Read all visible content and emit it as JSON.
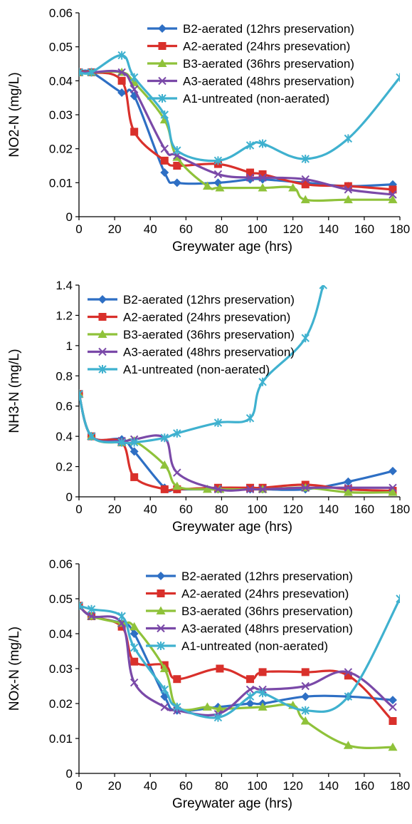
{
  "chart_data": [
    {
      "type": "line",
      "title": "",
      "xlabel": "Greywater age (hrs)",
      "ylabel": "NO2-N (mg/L)",
      "xlim": [
        0,
        180
      ],
      "ylim": [
        0,
        0.06
      ],
      "xticks": [
        "0",
        "20",
        "40",
        "60",
        "80",
        "100",
        "120",
        "140",
        "160",
        "180"
      ],
      "yticks": [
        "0",
        "0.01",
        "0.02",
        "0.03",
        "0.04",
        "0.05",
        "0.06"
      ],
      "grid": false,
      "legend_position": "top-right",
      "series": [
        {
          "name": "B2-aerated (12hrs preservation)",
          "color": "#2e6fc4",
          "marker": "diamond",
          "x": [
            0,
            7,
            24,
            31,
            48,
            55,
            78,
            96,
            103,
            127,
            151,
            176
          ],
          "y": [
            0.0425,
            0.0425,
            0.0365,
            0.0355,
            0.013,
            0.01,
            0.01,
            0.011,
            0.011,
            0.01,
            0.009,
            0.0095
          ]
        },
        {
          "name": "A2-aerated (24hrs presevation)",
          "color": "#d9302b",
          "marker": "square",
          "x": [
            0,
            7,
            24,
            31,
            48,
            55,
            78,
            96,
            103,
            127,
            151,
            176
          ],
          "y": [
            0.0425,
            0.0425,
            0.04,
            0.025,
            0.0165,
            0.015,
            0.0155,
            0.013,
            0.0125,
            0.0095,
            0.009,
            0.008
          ]
        },
        {
          "name": "B3-aerated (36hrs preservation)",
          "color": "#8fc23a",
          "marker": "triangle",
          "x": [
            0,
            7,
            24,
            31,
            48,
            55,
            72,
            79,
            103,
            120,
            127,
            151,
            176
          ],
          "y": [
            0.0425,
            0.0425,
            0.0425,
            0.0395,
            0.0285,
            0.0175,
            0.009,
            0.0085,
            0.0085,
            0.0085,
            0.005,
            0.005,
            0.005
          ]
        },
        {
          "name": "A3-aerated (48hrs preservation)",
          "color": "#7a49a8",
          "marker": "x",
          "x": [
            0,
            7,
            24,
            31,
            48,
            55,
            78,
            96,
            103,
            127,
            151,
            176
          ],
          "y": [
            0.0425,
            0.0425,
            0.0425,
            0.0375,
            0.02,
            0.018,
            0.0125,
            0.0115,
            0.0115,
            0.011,
            0.008,
            0.0065
          ]
        },
        {
          "name": "A1-untreated (non-aerated)",
          "color": "#3fb1cf",
          "marker": "star",
          "x": [
            0,
            7,
            24,
            31,
            48,
            55,
            78,
            96,
            103,
            127,
            151,
            180
          ],
          "y": [
            0.0425,
            0.0425,
            0.0475,
            0.041,
            0.03,
            0.0195,
            0.0165,
            0.021,
            0.0215,
            0.017,
            0.023,
            0.041
          ]
        }
      ]
    },
    {
      "type": "line",
      "title": "",
      "xlabel": "Greywater age (hrs)",
      "ylabel": "NH3-N (mg/L)",
      "xlim": [
        0,
        180
      ],
      "ylim": [
        0,
        1.4
      ],
      "xticks": [
        "0",
        "20",
        "40",
        "60",
        "80",
        "100",
        "120",
        "140",
        "160",
        "180"
      ],
      "yticks": [
        "0",
        "0.2",
        "0.4",
        "0.6",
        "0.8",
        "1",
        "1.2",
        "1.4"
      ],
      "grid": false,
      "legend_position": "top-left",
      "series": [
        {
          "name": "B2-aerated (12hrs preservation)",
          "color": "#2e6fc4",
          "marker": "diamond",
          "x": [
            0,
            7,
            24,
            31,
            48,
            55,
            78,
            96,
            103,
            127,
            151,
            176
          ],
          "y": [
            0.68,
            0.4,
            0.38,
            0.3,
            0.06,
            0.05,
            0.05,
            0.05,
            0.05,
            0.05,
            0.1,
            0.17
          ]
        },
        {
          "name": "A2-aerated (24hrs presevation)",
          "color": "#d9302b",
          "marker": "square",
          "x": [
            0,
            7,
            24,
            31,
            48,
            55,
            78,
            96,
            103,
            127,
            151,
            176
          ],
          "y": [
            0.68,
            0.4,
            0.36,
            0.13,
            0.05,
            0.05,
            0.06,
            0.06,
            0.06,
            0.08,
            0.05,
            0.04
          ]
        },
        {
          "name": "B3-aerated (36hrs preservation)",
          "color": "#8fc23a",
          "marker": "triangle",
          "x": [
            0,
            7,
            24,
            31,
            48,
            55,
            72,
            79,
            103,
            127,
            151,
            176
          ],
          "y": [
            0.68,
            0.4,
            0.36,
            0.37,
            0.21,
            0.07,
            0.05,
            0.05,
            0.05,
            0.06,
            0.03,
            0.03
          ]
        },
        {
          "name": "A3-aerated (48hrs preservation)",
          "color": "#7a49a8",
          "marker": "x",
          "x": [
            0,
            7,
            24,
            31,
            48,
            55,
            78,
            96,
            103,
            127,
            151,
            176
          ],
          "y": [
            0.68,
            0.4,
            0.37,
            0.38,
            0.39,
            0.16,
            0.05,
            0.05,
            0.05,
            0.06,
            0.06,
            0.06
          ]
        },
        {
          "name": "A1-untreated (non-aerated)",
          "color": "#3fb1cf",
          "marker": "star",
          "x": [
            0,
            7,
            24,
            31,
            48,
            55,
            78,
            96,
            103,
            127,
            137
          ],
          "y": [
            0.68,
            0.4,
            0.36,
            0.36,
            0.39,
            0.42,
            0.49,
            0.52,
            0.76,
            1.05,
            1.4
          ]
        }
      ]
    },
    {
      "type": "line",
      "title": "",
      "xlabel": "Greywater age (hrs)",
      "ylabel": "NOx-N  (mg/L)",
      "xlim": [
        0,
        180
      ],
      "ylim": [
        0,
        0.06
      ],
      "xticks": [
        "0",
        "20",
        "40",
        "60",
        "80",
        "100",
        "120",
        "140",
        "160",
        "180"
      ],
      "yticks": [
        "0",
        "0.01",
        "0.02",
        "0.03",
        "0.04",
        "0.05",
        "0.06"
      ],
      "grid": false,
      "legend_position": "top-right",
      "series": [
        {
          "name": "B2-aerated (12hrs preservation)",
          "color": "#2e6fc4",
          "marker": "diamond",
          "x": [
            0,
            7,
            24,
            31,
            48,
            55,
            78,
            96,
            103,
            127,
            151,
            176
          ],
          "y": [
            0.048,
            0.045,
            0.043,
            0.04,
            0.022,
            0.018,
            0.019,
            0.02,
            0.02,
            0.022,
            0.022,
            0.021
          ]
        },
        {
          "name": "A2-aerated (24hrs presevation)",
          "color": "#d9302b",
          "marker": "square",
          "x": [
            0,
            7,
            24,
            31,
            48,
            55,
            79,
            96,
            103,
            127,
            151,
            176
          ],
          "y": [
            0.048,
            0.045,
            0.042,
            0.032,
            0.031,
            0.027,
            0.03,
            0.027,
            0.029,
            0.029,
            0.028,
            0.015
          ]
        },
        {
          "name": "B3-aerated (36hrs preservation)",
          "color": "#8fc23a",
          "marker": "triangle",
          "x": [
            0,
            7,
            24,
            31,
            48,
            55,
            72,
            79,
            103,
            120,
            127,
            151,
            176
          ],
          "y": [
            0.048,
            0.045,
            0.043,
            0.042,
            0.03,
            0.019,
            0.019,
            0.0185,
            0.019,
            0.0195,
            0.015,
            0.008,
            0.0075
          ]
        },
        {
          "name": "A3-aerated (48hrs preservation)",
          "color": "#7a49a8",
          "marker": "x",
          "x": [
            0,
            7,
            24,
            31,
            48,
            55,
            78,
            96,
            103,
            127,
            151,
            176
          ],
          "y": [
            0.048,
            0.045,
            0.043,
            0.026,
            0.019,
            0.018,
            0.017,
            0.024,
            0.024,
            0.025,
            0.029,
            0.019
          ]
        },
        {
          "name": "A1-untreated (non-aerated)",
          "color": "#3fb1cf",
          "marker": "star",
          "x": [
            0,
            7,
            24,
            31,
            48,
            55,
            78,
            96,
            103,
            127,
            151,
            180
          ],
          "y": [
            0.048,
            0.047,
            0.045,
            0.036,
            0.024,
            0.019,
            0.016,
            0.022,
            0.023,
            0.018,
            0.022,
            0.05
          ]
        }
      ]
    }
  ]
}
